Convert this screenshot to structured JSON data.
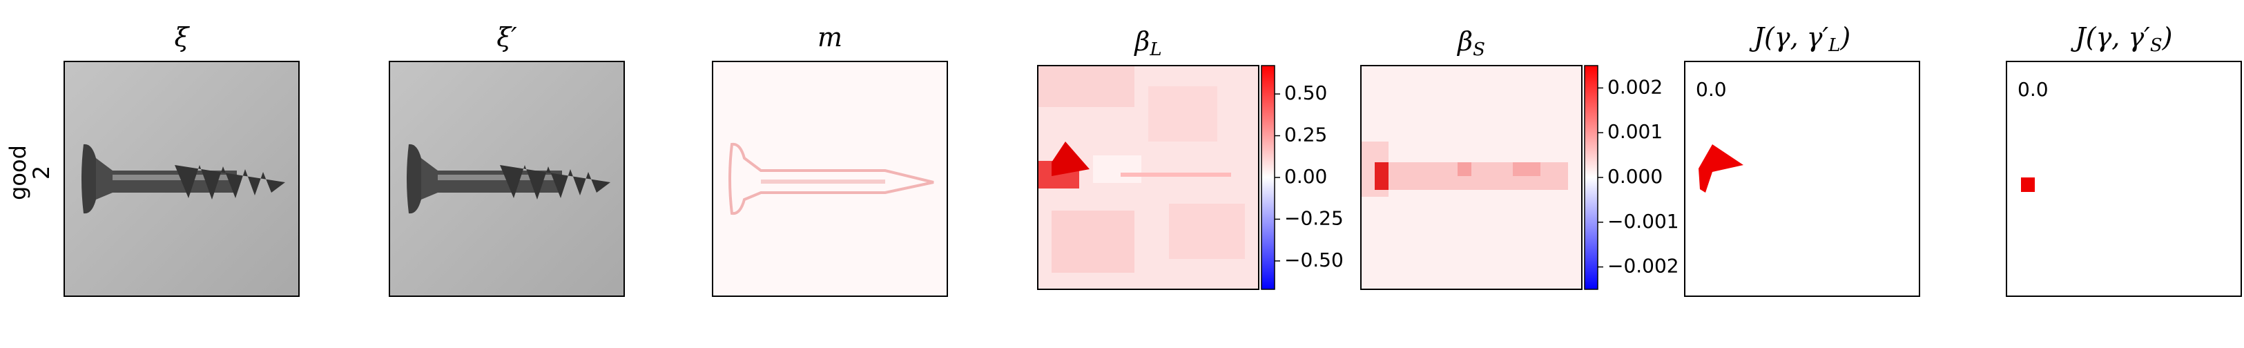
{
  "row_label": [
    "good",
    "2"
  ],
  "panels": [
    {
      "title": {
        "main": "ξ"
      }
    },
    {
      "title": {
        "main": "ξ′"
      }
    },
    {
      "title": {
        "main": "m"
      }
    },
    {
      "title": {
        "main": "β",
        "sub": "L"
      },
      "colorbar": {
        "clim": [
          -0.67,
          0.67
        ],
        "ticks": [
          {
            "value": 0.5,
            "label": "0.50"
          },
          {
            "value": 0.25,
            "label": "0.25"
          },
          {
            "value": 0,
            "label": "0.00"
          },
          {
            "value": -0.25,
            "label": "−0.25"
          },
          {
            "value": -0.5,
            "label": "−0.50"
          }
        ]
      }
    },
    {
      "title": {
        "main": "β",
        "sub": "S"
      },
      "colorbar": {
        "clim": [
          -0.0025,
          0.0025
        ],
        "ticks": [
          {
            "value": 0.002,
            "label": "0.002"
          },
          {
            "value": 0.001,
            "label": "0.001"
          },
          {
            "value": 0,
            "label": "0.000"
          },
          {
            "value": -0.001,
            "label": "−0.001"
          },
          {
            "value": -0.002,
            "label": "−0.002"
          }
        ]
      }
    },
    {
      "title": {
        "main": "J(γ, γ′",
        "sub": "L",
        "tail": ")"
      },
      "annotation": "0.0"
    },
    {
      "title": {
        "main": "J(γ, γ′",
        "sub": "S",
        "tail": ")"
      },
      "annotation": "0.0"
    }
  ]
}
